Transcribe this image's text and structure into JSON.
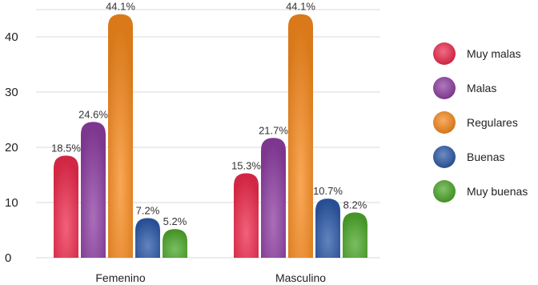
{
  "chart_data": {
    "type": "bar",
    "title": "",
    "xlabel": "",
    "ylabel": "",
    "ylim": [
      0,
      44
    ],
    "yticks": [
      0,
      10,
      20,
      30,
      40
    ],
    "grid": "horizontal",
    "legend_position": "right",
    "categories": [
      "Femenino",
      "Masculino"
    ],
    "series": [
      {
        "name": "Muy malas",
        "values": [
          18.5,
          15.3
        ],
        "labels": [
          "18.5%",
          "15.3%"
        ],
        "color": "#ee2c4e"
      },
      {
        "name": "Malas",
        "values": [
          24.6,
          21.7
        ],
        "labels": [
          "24.6%",
          "21.7%"
        ],
        "color": "#8e3fa2"
      },
      {
        "name": "Regulares",
        "values": [
          44.1,
          44.1
        ],
        "labels": [
          "44.1%",
          "44.1%"
        ],
        "color": "#f78a1e"
      },
      {
        "name": "Buenas",
        "values": [
          7.2,
          10.7
        ],
        "labels": [
          "7.2%",
          "10.7%"
        ],
        "color": "#2e5aa8"
      },
      {
        "name": "Muy buenas",
        "values": [
          5.2,
          8.2
        ],
        "labels": [
          "5.2%",
          "8.2%"
        ],
        "color": "#4ea82c"
      }
    ]
  }
}
